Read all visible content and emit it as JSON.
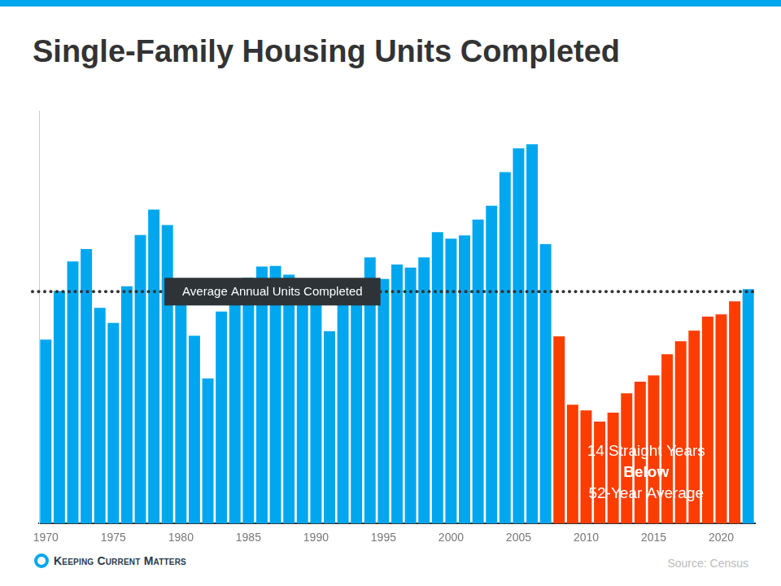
{
  "chart_data": {
    "type": "bar",
    "title": "Single-Family Housing Units Completed",
    "source": "Source: Census",
    "brand": "Keeping Current Matters",
    "categories": [
      "1970",
      null,
      null,
      null,
      null,
      "1975",
      null,
      null,
      null,
      null,
      "1980",
      null,
      null,
      null,
      null,
      "1985",
      null,
      null,
      null,
      null,
      "1990",
      null,
      null,
      null,
      null,
      "1995",
      null,
      null,
      null,
      null,
      "2000",
      null,
      null,
      null,
      null,
      "2005",
      null,
      null,
      null,
      null,
      "2010",
      null,
      null,
      null,
      null,
      "2015",
      null,
      null,
      null,
      null,
      "2020",
      null,
      null
    ],
    "values": [
      802,
      1014,
      1143,
      1197,
      940,
      875,
      1034,
      1258,
      1369,
      1301,
      957,
      819,
      632,
      924,
      1025,
      1072,
      1120,
      1123,
      1085,
      1026,
      966,
      838,
      964,
      1039,
      1160,
      1066,
      1129,
      1116,
      1160,
      1270,
      1242,
      1256,
      1325,
      1386,
      1532,
      1636,
      1654,
      1218,
      816,
      518,
      493,
      444,
      483,
      568,
      618,
      646,
      738,
      795,
      841,
      902,
      912,
      969,
      1022
    ],
    "colors": [
      "#00a7ef",
      "#00a7ef",
      "#00a7ef",
      "#00a7ef",
      "#00a7ef",
      "#00a7ef",
      "#00a7ef",
      "#00a7ef",
      "#00a7ef",
      "#00a7ef",
      "#00a7ef",
      "#00a7ef",
      "#00a7ef",
      "#00a7ef",
      "#00a7ef",
      "#00a7ef",
      "#00a7ef",
      "#00a7ef",
      "#00a7ef",
      "#00a7ef",
      "#00a7ef",
      "#00a7ef",
      "#00a7ef",
      "#00a7ef",
      "#00a7ef",
      "#00a7ef",
      "#00a7ef",
      "#00a7ef",
      "#00a7ef",
      "#00a7ef",
      "#00a7ef",
      "#00a7ef",
      "#00a7ef",
      "#00a7ef",
      "#00a7ef",
      "#00a7ef",
      "#00a7ef",
      "#00a7ef",
      "#fc3d00",
      "#fc3d00",
      "#fc3d00",
      "#fc3d00",
      "#fc3d00",
      "#fc3d00",
      "#fc3d00",
      "#fc3d00",
      "#fc3d00",
      "#fc3d00",
      "#fc3d00",
      "#fc3d00",
      "#fc3d00",
      "#fc3d00",
      "#00a7ef"
    ],
    "ylim": [
      0,
      1800
    ],
    "grid": false,
    "tick_labels": "x",
    "annotations": [
      {
        "text": "Average Annual Units Completed",
        "y": 1011,
        "line_style": "dotted"
      },
      {
        "lines": [
          "14 Straight Years",
          "Below",
          "52-Year Average"
        ]
      }
    ]
  }
}
